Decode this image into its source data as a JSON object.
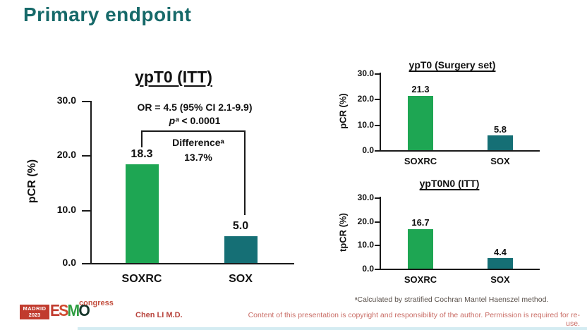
{
  "slide_title": "Primary endpoint",
  "colors": {
    "title_teal": "#166969",
    "bar_green": "#1ea653",
    "bar_dark_teal": "#156f75",
    "footer_red": "#c13b2e",
    "axis_black": "#1a1a1a"
  },
  "chart_data": [
    {
      "id": "ypt0_itt",
      "type": "bar",
      "title": "ypT0 (ITT)",
      "categories": [
        "SOXRC",
        "SOX"
      ],
      "values": [
        18.3,
        5.0
      ],
      "value_labels": [
        "18.3",
        "5.0"
      ],
      "bar_colors": [
        "#1ea653",
        "#156f75"
      ],
      "ylabel": "pCR (%)",
      "ylim": [
        0,
        30
      ],
      "yticks": [
        "30.0",
        "20.0",
        "10.0",
        "0.0"
      ],
      "grid": false,
      "annotations": {
        "or": "OR = 4.5 (95% CI 2.1-9.9)",
        "p_italic": "pᵃ",
        "p_rest": " < 0.0001",
        "difference_label": "Differenceᵃ",
        "difference_value": "13.7%"
      }
    },
    {
      "id": "ypt0_surgery_set",
      "type": "bar",
      "title": "ypT0 (Surgery set)",
      "categories": [
        "SOXRC",
        "SOX"
      ],
      "values": [
        21.3,
        5.8
      ],
      "value_labels": [
        "21.3",
        "5.8"
      ],
      "bar_colors": [
        "#1ea653",
        "#156f75"
      ],
      "ylabel": "pCR (%)",
      "ylim": [
        0,
        30
      ],
      "yticks": [
        "30.0",
        "20.0",
        "10.0",
        "0.0"
      ],
      "grid": false
    },
    {
      "id": "ypt0n0_itt",
      "type": "bar",
      "title": "ypT0N0 (ITT)",
      "categories": [
        "SOXRC",
        "SOX"
      ],
      "values": [
        16.7,
        4.4
      ],
      "value_labels": [
        "16.7",
        "4.4"
      ],
      "bar_colors": [
        "#1ea653",
        "#156f75"
      ],
      "ylabel": "tpCR (%)",
      "ylim": [
        0,
        30
      ],
      "yticks": [
        "30.0",
        "20.0",
        "10.0",
        "0.0"
      ],
      "grid": false
    }
  ],
  "footnote": "ᵃCalculated by stratified Cochran Mantel Haenszel method.",
  "footer": {
    "logo": {
      "location": "MADRID",
      "year": "2023",
      "letters": [
        "E",
        "S",
        "M",
        "O"
      ],
      "congress": "congress"
    },
    "author": "Chen LI M.D.",
    "copyright": "Content of this presentation is copyright and responsibility of the author. Permission is required for re-use."
  }
}
